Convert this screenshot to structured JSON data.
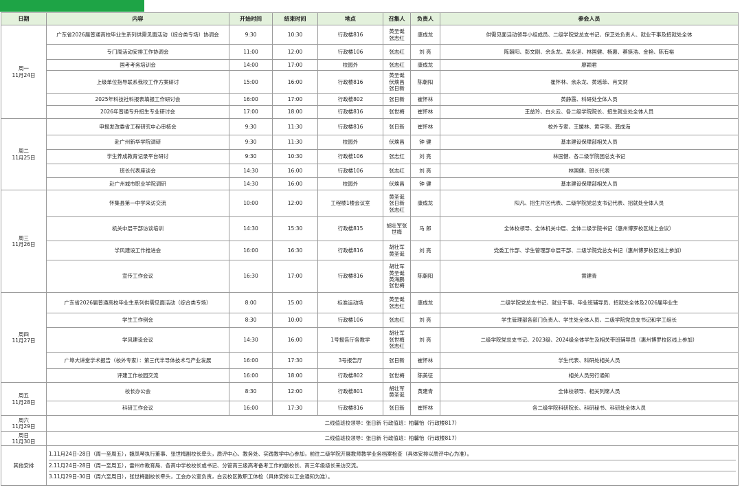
{
  "table": {
    "columns": [
      "日期",
      "内容",
      "开始时间",
      "结束时间",
      "地点",
      "召集人",
      "负责人",
      "参会人员"
    ],
    "days": [
      {
        "day": "周一",
        "date": "11月24日",
        "rows": [
          {
            "content": "广东省2026届普通高校毕业生系列供需见面活动（综合类专场）协调会",
            "start": "9:30",
            "end": "10:30",
            "location": "行政楼816",
            "convener": [
              "黄圣诞",
              "张志红"
            ],
            "owner": "康成龙",
            "attendees": "供需见面活动领导小组成员、二级学院党总支书记、保卫处负责人、就业干事及招就处全体"
          },
          {
            "content": "专门周活动安排工作协调会",
            "start": "11:00",
            "end": "12:00",
            "location": "行政楼106",
            "convener": [
              "张志红"
            ],
            "owner": "刘 亮",
            "attendees": "陈朝阳、彭文刚、余永龙、吴永坚、林国健、杨惠、蔡挺浩、金艳、陈有裕"
          },
          {
            "content": "国考考务培训会",
            "start": "14:00",
            "end": "17:00",
            "location": "校园外",
            "convener": [
              "张志红"
            ],
            "owner": "康成龙",
            "attendees": "廖颖君"
          },
          {
            "content": "上级单位指导联系我校工作方案研讨",
            "start": "15:00",
            "end": "16:00",
            "location": "行政楼816",
            "convener": [
              "黄圣诞",
              "伏焕昌",
              "张日新"
            ],
            "owner": "陈朝阳",
            "attendees": "崔怀林、余永龙、黄瑶菲、肖文财"
          },
          {
            "content": "2025年科技社科报表填报工作研讨会",
            "start": "16:00",
            "end": "17:00",
            "location": "行政楼802",
            "convener": [
              "张日新"
            ],
            "owner": "崔怀林",
            "attendees": "黄静霞、科研处全体人员"
          },
          {
            "content": "2026年普通专升招生专业研讨会",
            "start": "17:00",
            "end": "18:00",
            "location": "行政楼816",
            "convener": [
              "张世梅"
            ],
            "owner": "崔怀林",
            "attendees": "王益玲、白火云、各二级学院院长、招生就业处全体人员"
          }
        ]
      },
      {
        "day": "周二",
        "date": "11月25日",
        "rows": [
          {
            "content": "申报发改委省工程研究中心审核会",
            "start": "9:30",
            "end": "11:30",
            "location": "行政楼816",
            "convener": [
              "张日新"
            ],
            "owner": "崔怀林",
            "attendees": "校外专家、王媛林、黄宇亮、龚成海"
          },
          {
            "content": "赴广州新华学院调研",
            "start": "9:30",
            "end": "11:30",
            "location": "校园外",
            "convener": [
              "伏焕昌"
            ],
            "owner": "钟 健",
            "attendees": "基本建设保障部相关人员"
          },
          {
            "content": "学生养成教育记录平台研讨",
            "start": "9:30",
            "end": "10:30",
            "location": "行政楼106",
            "convener": [
              "张志红"
            ],
            "owner": "刘 亮",
            "attendees": "林国健、各二级学院团总支书记"
          },
          {
            "content": "班长代表座谈会",
            "start": "14:30",
            "end": "16:00",
            "location": "行政楼106",
            "convener": [
              "张志红"
            ],
            "owner": "刘 亮",
            "attendees": "林国健、班长代表"
          },
          {
            "content": "赴广州城市职业学院调研",
            "start": "14:30",
            "end": "16:00",
            "location": "校园外",
            "convener": [
              "伏焕昌"
            ],
            "owner": "钟 健",
            "attendees": "基本建设保障部相关人员"
          }
        ]
      },
      {
        "day": "周三",
        "date": "11月26日",
        "rows": [
          {
            "content": "怀集县第一中学来访交流",
            "start": "10:00",
            "end": "12:00",
            "location": "工程楼1楼会议室",
            "convener": [
              "黄圣诞",
              "张日新",
              "张志红"
            ],
            "owner": "康成龙",
            "attendees": "阳凡、招生片区代表、二级学院党总支书记代表、招就处全体人员"
          },
          {
            "content": "机关中层干部访谈培训",
            "start": "14:30",
            "end": "15:30",
            "location": "行政楼815",
            "convener": [
              "胡壮军张世梅"
            ],
            "owner": "马 郎",
            "attendees": "全体校领导、全体机关中层、全体二级学院书记（惠州博罗校区线上会议）"
          },
          {
            "content": "学风建设工作推进会",
            "start": "16:00",
            "end": "16:30",
            "location": "行政楼816",
            "convener": [
              "胡壮军",
              "黄圣诞"
            ],
            "owner": "刘 亮",
            "attendees": "党委工作部、学生管理部中层干部、二级学院党总支书记（惠州博罗校区线上参加）"
          },
          {
            "content": "宣传工作会议",
            "start": "16:30",
            "end": "17:00",
            "location": "行政楼816",
            "convener": [
              "胡壮军",
              "黄圣诞",
              "黄海鹏",
              "张世梅"
            ],
            "owner": "陈朝阳",
            "attendees": "黄建青"
          }
        ]
      },
      {
        "day": "周四",
        "date": "11月27日",
        "rows": [
          {
            "content": "广东省2026届普通高校毕业生系列供需见面活动（综合类专场）",
            "start": "8:00",
            "end": "15:00",
            "location": "标准运动场",
            "convener": [
              "黄圣诞",
              "张志红"
            ],
            "owner": "康成龙",
            "attendees": "二级学院党总支书记、就业干事、毕业班辅导员、招就处全体及2026届毕业生"
          },
          {
            "content": "学生工作例会",
            "start": "8:30",
            "end": "10:00",
            "location": "行政楼106",
            "convener": [
              "张志红"
            ],
            "owner": "刘 亮",
            "attendees": "学生管理部各部门负责人、学生处全体人员、二级学院党总支书记和学工组长"
          },
          {
            "content": "学风建设会议",
            "start": "14:30",
            "end": "16:00",
            "location": "1号报告厅各教学",
            "convener": [
              "胡壮军",
              "张世梅",
              "张志红"
            ],
            "owner": "刘 亮",
            "attendees": "二级学院党总支书记、2023级、2024级全体学生及相关带班辅导员（惠州博罗校区线上参加）"
          },
          {
            "content": "广埠大讲堂学术报告（校外专家）：第三代半导体技术与产业发展",
            "start": "16:00",
            "end": "17:30",
            "location": "3号报告厅",
            "convener": [
              "张日新"
            ],
            "owner": "崔怀林",
            "attendees": "学生代表、科研处相关人员"
          },
          {
            "content": "评建工作校园交流",
            "start": "16:00",
            "end": "18:00",
            "location": "行政楼802",
            "convener": [
              "张世梅"
            ],
            "owner": "陈美征",
            "attendees": "相关人员另行通知"
          }
        ]
      },
      {
        "day": "周五",
        "date": "11月28日",
        "rows": [
          {
            "content": "校长办公会",
            "start": "8:30",
            "end": "12:00",
            "location": "行政楼801",
            "convener": [
              "胡壮军",
              "黄圣诞"
            ],
            "owner": "黄建青",
            "attendees": "全体校领导、相关列席人员"
          },
          {
            "content": "科研工作会议",
            "start": "16:00",
            "end": "17:30",
            "location": "行政楼816",
            "convener": [
              "张日新"
            ],
            "owner": "崔怀林",
            "attendees": "各二级学院科研院长、科研秘书、科研处全体人员"
          }
        ]
      }
    ],
    "duty": [
      {
        "day": "周六",
        "date": "11月29日",
        "text": "二线值班校领导：张日新 行政值班：柏馨怡（行政楼817）"
      },
      {
        "day": "周日",
        "date": "11月30日",
        "text": "二线值班校领导：张日新 行政值班：柏馨怡（行政楼817）"
      }
    ],
    "other": {
      "label": "其他安排",
      "items": [
        "1.11月24日-28日（周一至周五），魏凤琴执行董事、张世梅副校长牵头，质评中心、教务处、实践教学中心参加，前往二级学院开展教师教学业务档案检查（具体安排以质评中心为准）。",
        "2.11月24日-28日（周一至周五），雷州市教育局、各高中学校校长或书记、分管高三级高考备考工作的副校长、高三年级级长来访交流。",
        "3.11月29日-30日（周六至周日），张世梅副校长牵头，工会办公室负责，白云校区教职工体检（具体安排以工会通知为准）。"
      ]
    }
  }
}
